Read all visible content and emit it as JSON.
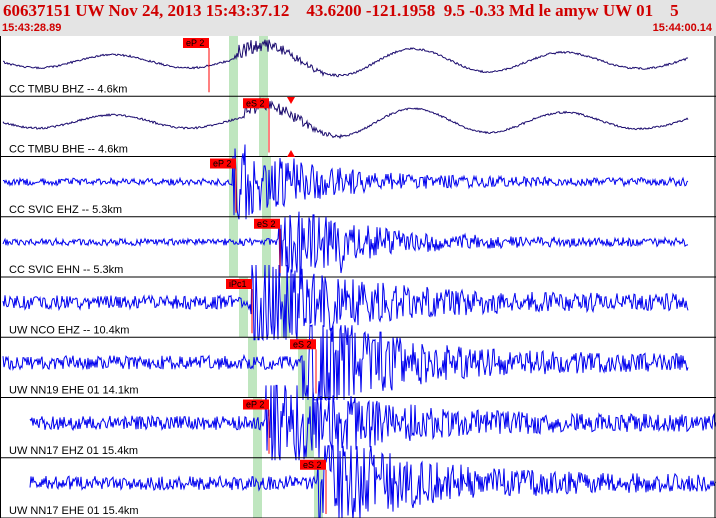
{
  "header": {
    "title": "60637151 UW Nov 24, 2013 15:43:37.12    43.6200 -121.1958  9.5 -0.33 Md le amyw UW 01    5",
    "time_start": "15:43:28.89",
    "time_end": "15:44:00.14"
  },
  "colors": {
    "header_bg": "#e4e4e4",
    "title_text": "#d00000",
    "trace_dark": "#1a0a6e",
    "trace_blue": "#0000ee",
    "pick_red": "#ff0000",
    "theoretical_band": "#bfe6bf",
    "separator": "#000000"
  },
  "traces": [
    {
      "label": "CC TMBU BHZ -- 4.6km",
      "color": "dark",
      "pick": "eP 2",
      "amp": "low_freq"
    },
    {
      "label": "CC TMBU BHE -- 4.6km",
      "color": "dark",
      "pick": "eS 2",
      "amp": "low_freq"
    },
    {
      "label": "CC SVIC EHZ -- 5.3km",
      "color": "blue",
      "pick": "eP 2",
      "amp": "quiet"
    },
    {
      "label": "CC SVIC EHN -- 5.3km",
      "color": "blue",
      "pick": "eS 2",
      "amp": "quiet"
    },
    {
      "label": "UW NCO EHZ -- 10.4km",
      "color": "blue",
      "pick": "iPc1",
      "amp": "noisy"
    },
    {
      "label": "UW NN19 EHE 01 14.1km",
      "color": "blue",
      "pick": "eS 2",
      "amp": "noisy"
    },
    {
      "label": "UW NN17 EHZ 01 15.4km",
      "color": "blue",
      "pick": "eP 2",
      "amp": "noisy"
    },
    {
      "label": "UW NN17 EHE 01 15.4km",
      "color": "blue",
      "pick": "eS 2",
      "amp": "noisy"
    }
  ]
}
